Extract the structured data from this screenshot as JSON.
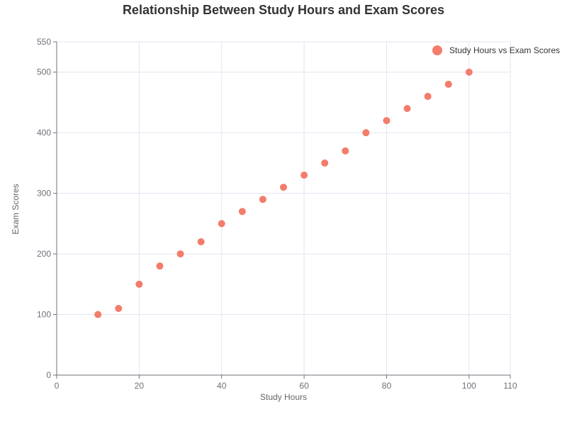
{
  "chart_data": {
    "type": "scatter",
    "title": "Relationship Between Study Hours and Exam Scores",
    "xlabel": "Study Hours",
    "ylabel": "Exam Scores",
    "xlim": [
      0,
      110
    ],
    "ylim": [
      0,
      550
    ],
    "xticks": [
      "0",
      "20",
      "40",
      "60",
      "80",
      "100",
      "110"
    ],
    "yticks": [
      "0",
      "100",
      "200",
      "300",
      "400",
      "500",
      "550"
    ],
    "grid": true,
    "legend_position": "top-right",
    "series": [
      {
        "name": "Study Hours vs Exam Scores",
        "color": "#f47c6a",
        "points": [
          {
            "x": 10,
            "y": 100
          },
          {
            "x": 15,
            "y": 110
          },
          {
            "x": 20,
            "y": 150
          },
          {
            "x": 25,
            "y": 180
          },
          {
            "x": 30,
            "y": 200
          },
          {
            "x": 35,
            "y": 220
          },
          {
            "x": 40,
            "y": 250
          },
          {
            "x": 45,
            "y": 270
          },
          {
            "x": 50,
            "y": 290
          },
          {
            "x": 55,
            "y": 310
          },
          {
            "x": 60,
            "y": 330
          },
          {
            "x": 65,
            "y": 350
          },
          {
            "x": 70,
            "y": 370
          },
          {
            "x": 75,
            "y": 400
          },
          {
            "x": 80,
            "y": 420
          },
          {
            "x": 85,
            "y": 440
          },
          {
            "x": 90,
            "y": 460
          },
          {
            "x": 95,
            "y": 480
          },
          {
            "x": 100,
            "y": 500
          }
        ]
      }
    ]
  }
}
